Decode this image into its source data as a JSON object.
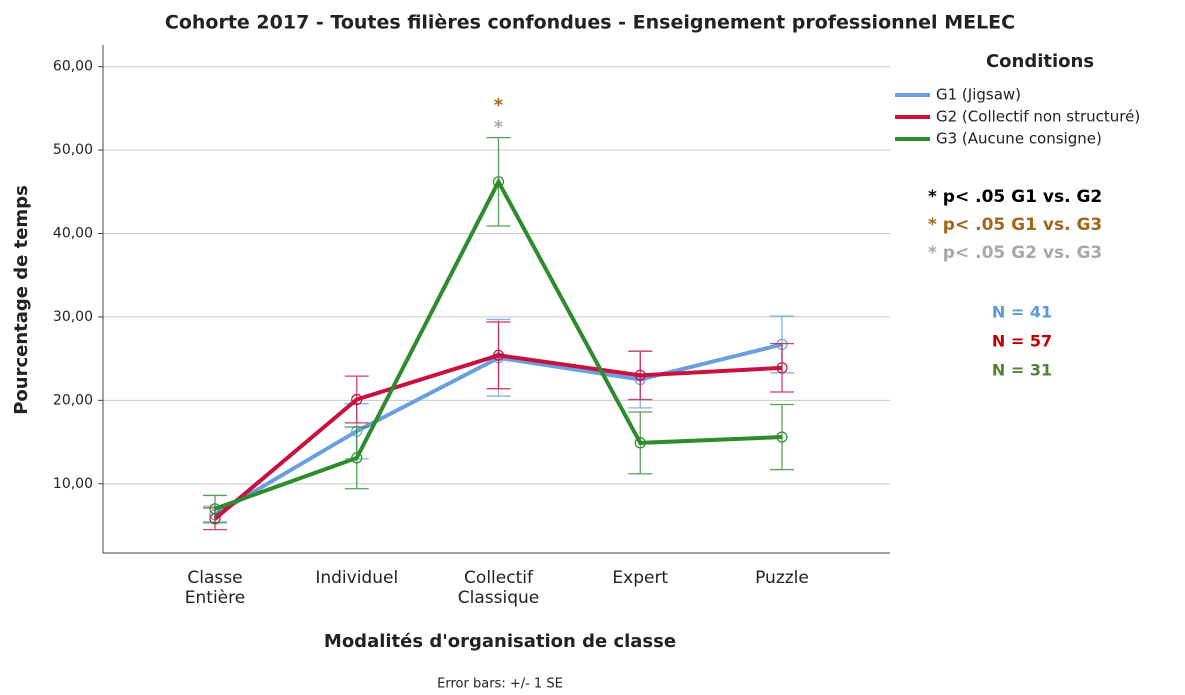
{
  "chart_data": {
    "type": "line",
    "title": "Cohorte 2017 - Toutes filières confondues - Enseignement professionnel MELEC",
    "xlabel": "Modalités d'organisation de classe",
    "ylabel": "Pourcentage de temps",
    "footnote": "Error bars: +/- 1 SE",
    "categories": [
      "Classe Entière",
      "Individuel",
      "Collectif Classique",
      "Expert",
      "Puzzle"
    ],
    "ylim": [
      1.7,
      62.6
    ],
    "yticks": [
      {
        "value": 10,
        "label": "10,00"
      },
      {
        "value": 20,
        "label": "20,00"
      },
      {
        "value": 30,
        "label": "30,00"
      },
      {
        "value": 40,
        "label": "40,00"
      },
      {
        "value": 50,
        "label": "50,00"
      },
      {
        "value": 60,
        "label": "60,00"
      }
    ],
    "grid": true,
    "legend_title": "Conditions",
    "legend": "top-right",
    "series": [
      {
        "name": "G1 (Jigsaw)",
        "color": "#6a9fdc",
        "values": [
          6.3,
          16.3,
          25.1,
          22.5,
          26.7
        ],
        "errors": [
          1.0,
          3.3,
          4.6,
          3.4,
          3.4
        ]
      },
      {
        "name": "G2 (Collectif non structuré)",
        "color": "#c8113f",
        "values": [
          5.8,
          20.1,
          25.4,
          23.0,
          23.9
        ],
        "errors": [
          1.3,
          2.8,
          4.0,
          2.9,
          2.9
        ]
      },
      {
        "name": "G3 (Aucune consigne)",
        "color": "#2e8b2e",
        "values": [
          7.0,
          13.1,
          46.2,
          14.9,
          15.6
        ],
        "errors": [
          1.6,
          3.7,
          5.3,
          3.7,
          3.9
        ]
      }
    ],
    "markers": [
      {
        "text": "*",
        "color": "#a0661a"
      },
      {
        "text": "*",
        "color": "#a8a8a8"
      }
    ],
    "notes": [
      {
        "text": "* p< .05 G1 vs. G2",
        "color": "#000000"
      },
      {
        "text": "* p< .05 G1 vs. G3",
        "color": "#a0661a"
      },
      {
        "text": "* p< .05 G2 vs. G3",
        "color": "#a8a8a8"
      }
    ],
    "counts": [
      {
        "text": "N = 41",
        "color": "#5b9bd5"
      },
      {
        "text": "N = 57",
        "color": "#c00000"
      },
      {
        "text": "N = 31",
        "color": "#548235"
      }
    ]
  }
}
